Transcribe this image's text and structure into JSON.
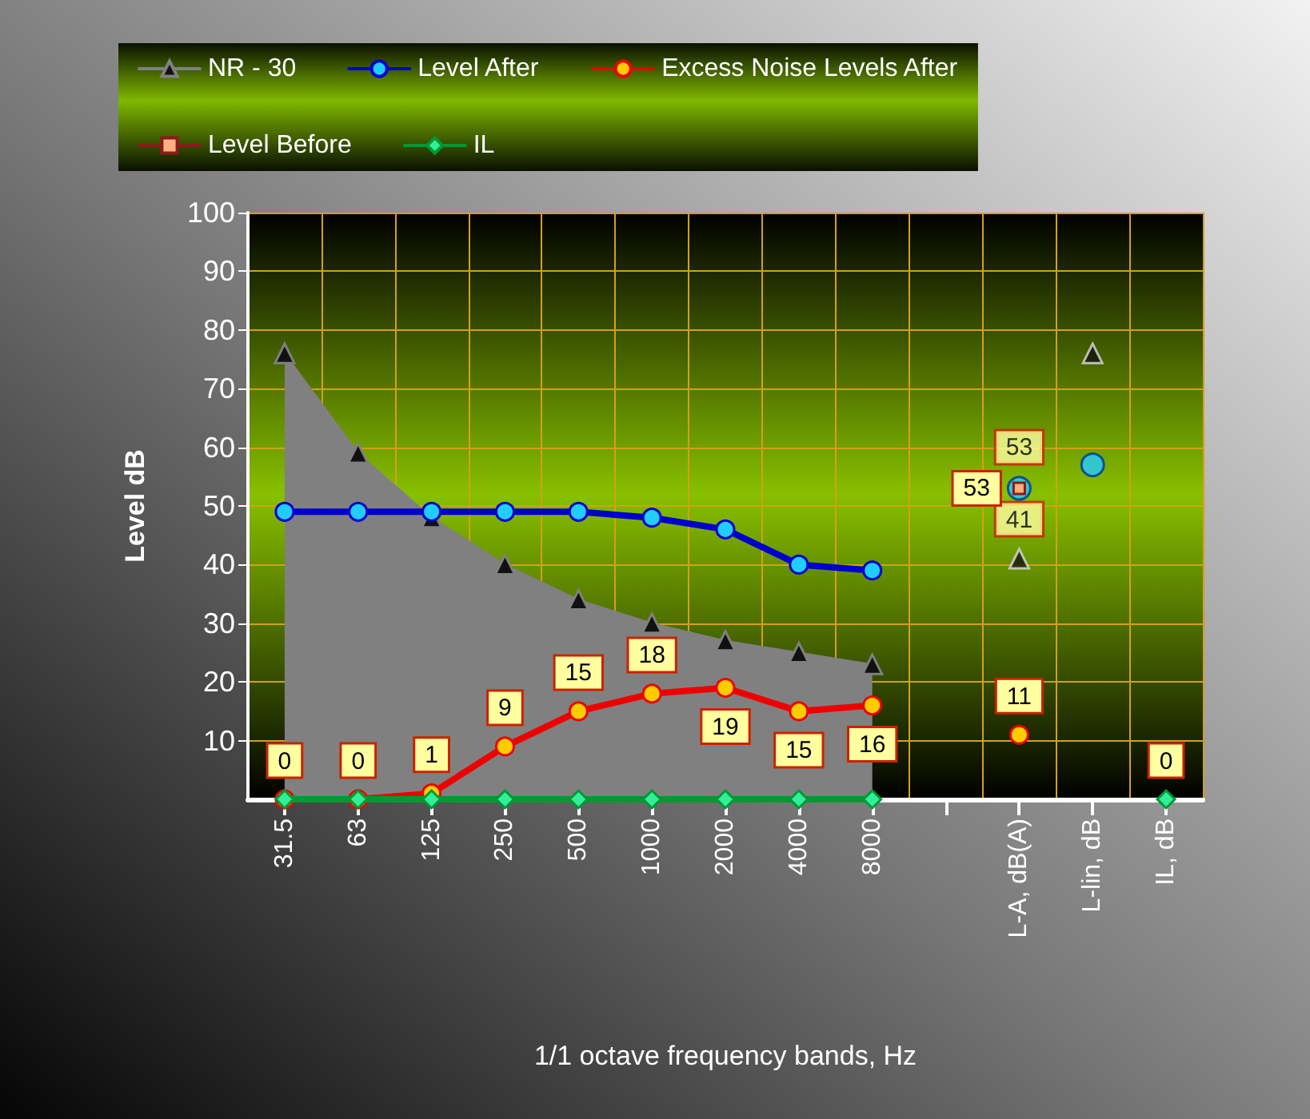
{
  "chart_data": {
    "type": "line",
    "xlabel": "1/1 octave frequency bands, Hz",
    "ylabel": "Level dB",
    "categories": [
      "31.5",
      "63",
      "125",
      "250",
      "500",
      "1000",
      "2000",
      "4000",
      "8000",
      null,
      "L-A, dB(A)",
      "L-lin, dB",
      "IL, dB"
    ],
    "ylim": [
      0,
      100
    ],
    "yticks": [
      10,
      20,
      30,
      40,
      50,
      60,
      70,
      80,
      90,
      100
    ],
    "grid": true,
    "legend": "top",
    "series": [
      {
        "name": "NR - 30",
        "type": "area",
        "marker": "triangle",
        "color": "#808080",
        "values": [
          76,
          59,
          48,
          40,
          34,
          30,
          27,
          25,
          23,
          null,
          null,
          null,
          null
        ]
      },
      {
        "type": "scatter",
        "marker": "triangle",
        "color": "#111111",
        "values": [
          null,
          null,
          null,
          null,
          null,
          null,
          null,
          null,
          null,
          null,
          41,
          76,
          null
        ],
        "value_labels": [
          null,
          null,
          null,
          null,
          null,
          null,
          null,
          null,
          null,
          null,
          "41",
          null,
          null
        ]
      },
      {
        "name": "Level After",
        "marker": "circle",
        "color": "#0000cc",
        "values": [
          49,
          49,
          49,
          49,
          49,
          48,
          46,
          40,
          39,
          null,
          null,
          null,
          null
        ]
      },
      {
        "type": "scatter",
        "marker": "circle",
        "color": "#22ccff",
        "values": [
          null,
          null,
          null,
          null,
          null,
          null,
          null,
          null,
          null,
          null,
          53,
          57,
          null
        ],
        "value_labels": [
          null,
          null,
          null,
          null,
          null,
          null,
          null,
          null,
          null,
          null,
          "53",
          null,
          null
        ]
      },
      {
        "name": "Excess Noise Levels After",
        "marker": "circle",
        "color": "#ee0000",
        "values": [
          0,
          0,
          1,
          9,
          15,
          18,
          19,
          15,
          16,
          null,
          11,
          null,
          null
        ],
        "value_labels": [
          "0",
          "0",
          "1",
          "9",
          "15",
          "18",
          "19",
          "15",
          "16",
          null,
          "11",
          null,
          null
        ]
      },
      {
        "name": "Level Before",
        "marker": "square",
        "color": "#8b1a1a",
        "values": [
          null,
          null,
          null,
          null,
          null,
          null,
          null,
          null,
          null,
          null,
          53,
          null,
          null
        ],
        "value_labels": [
          null,
          null,
          null,
          null,
          null,
          null,
          null,
          null,
          null,
          null,
          "53",
          null,
          null
        ]
      },
      {
        "name": "IL",
        "marker": "diamond",
        "color": "#009933",
        "values": [
          0,
          0,
          0,
          0,
          0,
          0,
          0,
          0,
          0,
          null,
          null,
          null,
          0
        ],
        "value_labels": [
          null,
          null,
          null,
          null,
          null,
          null,
          null,
          null,
          null,
          null,
          null,
          null,
          "0"
        ]
      }
    ]
  }
}
